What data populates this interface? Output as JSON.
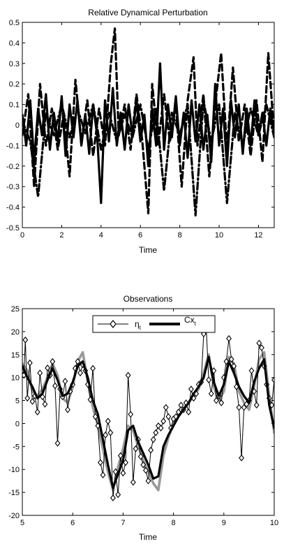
{
  "chart_data": [
    {
      "type": "line",
      "title": "Relative Dynamical Perturbation",
      "xlabel": "Time",
      "ylabel": "",
      "xlim": [
        0,
        12.8
      ],
      "ylim": [
        -0.5,
        0.5
      ],
      "xticks": [
        0,
        2,
        4,
        6,
        8,
        10,
        12
      ],
      "yticks": [
        -0.5,
        -0.4,
        -0.3,
        -0.2,
        -0.1,
        0,
        0.1,
        0.2,
        0.3,
        0.4,
        0.5
      ],
      "xtick_labels": [
        "0",
        "2",
        "4",
        "6",
        "8",
        "10",
        "12"
      ],
      "ytick_labels": [
        "-0.5",
        "-0.4",
        "-0.3",
        "-0.2",
        "-0.1",
        "0",
        "0.1",
        "0.2",
        "0.3",
        "0.4",
        "0.5"
      ],
      "grid": false,
      "series": [
        {
          "style": "solid-thick",
          "color": "#000000",
          "x": [
            0,
            0.2,
            0.4,
            0.6,
            0.8,
            1.0,
            1.2,
            1.4,
            1.6,
            1.8,
            2.0,
            2.2,
            2.4,
            2.6,
            2.8,
            3.0,
            3.2,
            3.4,
            3.6,
            3.8,
            4.0,
            4.2,
            4.4,
            4.6,
            4.8,
            5.0,
            5.2,
            5.4,
            5.6,
            5.8,
            6.0,
            6.2,
            6.4,
            6.6,
            6.8,
            7.0,
            7.2,
            7.4,
            7.6,
            7.8,
            8.0,
            8.2,
            8.4,
            8.6,
            8.8,
            9.0,
            9.2,
            9.4,
            9.6,
            9.8,
            10.0,
            10.2,
            10.4,
            10.6,
            10.8,
            11.0,
            11.2,
            11.4,
            11.6,
            11.8,
            12.0,
            12.2,
            12.4,
            12.6,
            12.8
          ],
          "y": [
            0.05,
            -0.1,
            0.12,
            -0.18,
            0.08,
            -0.05,
            0.15,
            -0.12,
            0.06,
            -0.08,
            0.14,
            -0.15,
            0.1,
            -0.06,
            0.12,
            -0.1,
            0.05,
            -0.14,
            0.1,
            -0.05,
            -0.38,
            0.12,
            -0.08,
            0.18,
            -0.1,
            0.06,
            -0.12,
            0.1,
            -0.05,
            0.12,
            -0.08,
            0.05,
            -0.2,
            0.08,
            -0.1,
            0.3,
            -0.12,
            0.1,
            -0.06,
            0.14,
            -0.1,
            0.06,
            -0.16,
            0.12,
            -0.08,
            0.1,
            -0.12,
            0.05,
            -0.18,
            0.2,
            -0.1,
            0.08,
            -0.2,
            0.12,
            -0.06,
            0.1,
            -0.14,
            0.08,
            -0.1,
            0.12,
            -0.05,
            0.06,
            -0.1,
            0.08,
            -0.04
          ]
        },
        {
          "style": "dashed-thick",
          "color": "#000000",
          "x": [
            0,
            0.3,
            0.6,
            0.9,
            1.2,
            1.5,
            1.8,
            2.1,
            2.4,
            2.7,
            3.0,
            3.3,
            3.6,
            3.9,
            4.2,
            4.5,
            4.7,
            4.9,
            5.2,
            5.5,
            5.8,
            6.1,
            6.4,
            6.6,
            6.9,
            7.2,
            7.5,
            7.8,
            8.1,
            8.4,
            8.7,
            8.9,
            9.2,
            9.5,
            9.8,
            10.1,
            10.4,
            10.7,
            11.0,
            11.3,
            11.6,
            11.9,
            12.2,
            12.5,
            12.8
          ],
          "y": [
            -0.05,
            0.15,
            -0.3,
            0.2,
            -0.1,
            0.08,
            -0.12,
            0.05,
            -0.25,
            0.22,
            -0.08,
            0.12,
            -0.15,
            0.08,
            -0.1,
            0.3,
            0.47,
            -0.05,
            0.1,
            -0.12,
            0.15,
            -0.08,
            -0.43,
            0.2,
            -0.1,
            0.15,
            -0.08,
            0.1,
            -0.3,
            0.12,
            0.33,
            -0.1,
            0.15,
            -0.25,
            0.1,
            0.35,
            -0.12,
            0.28,
            -0.08,
            0.1,
            -0.15,
            0.12,
            -0.18,
            0.35,
            -0.05
          ]
        },
        {
          "style": "dashdot-thick",
          "color": "#000000",
          "x": [
            0,
            0.4,
            0.8,
            1.2,
            1.6,
            2.0,
            2.4,
            2.8,
            3.2,
            3.6,
            4.0,
            4.4,
            4.8,
            5.2,
            5.6,
            6.0,
            6.4,
            6.8,
            7.2,
            7.6,
            8.0,
            8.4,
            8.8,
            9.2,
            9.6,
            10.0,
            10.4,
            10.8,
            11.2,
            11.6,
            12.0,
            12.4,
            12.8
          ],
          "y": [
            0.02,
            -0.08,
            -0.35,
            0.06,
            -0.05,
            0.1,
            -0.06,
            0.08,
            -0.04,
            0.1,
            -0.12,
            0.06,
            -0.08,
            0.05,
            -0.06,
            0.1,
            -0.12,
            0.08,
            -0.32,
            0.06,
            -0.05,
            0.1,
            -0.44,
            0.12,
            -0.08,
            0.1,
            -0.38,
            0.06,
            -0.1,
            0.08,
            -0.05,
            0.1,
            -0.06
          ]
        }
      ]
    },
    {
      "type": "line",
      "title": "Observations",
      "xlabel": "Time",
      "ylabel": "",
      "xlim": [
        5,
        10
      ],
      "ylim": [
        -20,
        25
      ],
      "xticks": [
        5,
        6,
        7,
        8,
        9,
        10
      ],
      "yticks": [
        -20,
        -15,
        -10,
        -5,
        0,
        5,
        10,
        15,
        20,
        25
      ],
      "xtick_labels": [
        "5",
        "6",
        "7",
        "8",
        "9",
        "10"
      ],
      "ytick_labels": [
        "-20",
        "-15",
        "-10",
        "-5",
        "0",
        "5",
        "10",
        "15",
        "20",
        "25"
      ],
      "grid": false,
      "legend": {
        "position": "top-center",
        "entries": [
          "η_t",
          "Cx_t"
        ]
      },
      "legend_labels": {
        "eta_main": "η",
        "eta_sub": "t",
        "cx_main": "Cx",
        "cx_sub": "t"
      },
      "series": [
        {
          "name": "eta_t",
          "style": "thin-diamond",
          "color": "#000000",
          "x": [
            5.0,
            5.03,
            5.06,
            5.1,
            5.15,
            5.2,
            5.25,
            5.3,
            5.35,
            5.4,
            5.45,
            5.5,
            5.55,
            5.6,
            5.65,
            5.7,
            5.75,
            5.8,
            5.85,
            5.9,
            5.95,
            6.0,
            6.05,
            6.1,
            6.15,
            6.2,
            6.25,
            6.3,
            6.35,
            6.4,
            6.45,
            6.5,
            6.55,
            6.6,
            6.65,
            6.7,
            6.75,
            6.8,
            6.85,
            6.9,
            6.95,
            7.0,
            7.05,
            7.1,
            7.15,
            7.2,
            7.25,
            7.3,
            7.35,
            7.4,
            7.45,
            7.5,
            7.55,
            7.6,
            7.65,
            7.7,
            7.75,
            7.8,
            7.85,
            7.9,
            7.95,
            8.0,
            8.05,
            8.1,
            8.15,
            8.2,
            8.25,
            8.3,
            8.35,
            8.4,
            8.45,
            8.5,
            8.55,
            8.6,
            8.65,
            8.7,
            8.75,
            8.8,
            8.85,
            8.9,
            8.95,
            9.0,
            9.05,
            9.1,
            9.15,
            9.2,
            9.25,
            9.3,
            9.35,
            9.4,
            9.45,
            9.5,
            9.55,
            9.6,
            9.65,
            9.7,
            9.75,
            9.8,
            9.85,
            9.9,
            9.95,
            10.0
          ],
          "y": [
            11.5,
            10.5,
            18.2,
            5.5,
            13.2,
            4.8,
            6.0,
            2.5,
            11.0,
            5.8,
            4.2,
            12.1,
            10.5,
            13.5,
            8.2,
            -4.3,
            7.5,
            5.8,
            9.2,
            3.0,
            7.0,
            8.5,
            12.0,
            13.5,
            11.0,
            12.8,
            11.5,
            8.5,
            5.2,
            12.0,
            1.5,
            -0.5,
            -8.5,
            -11.2,
            -2.5,
            0.5,
            -2.0,
            -16.2,
            -10.5,
            -15.5,
            -7.0,
            -10.8,
            -8.5,
            10.5,
            2.0,
            -12.8,
            -5.5,
            -3.5,
            -7.2,
            -9.0,
            -10.2,
            -12.5,
            -5.8,
            -3.5,
            -2.0,
            -0.5,
            -1.0,
            0.5,
            3.5,
            1.5,
            -1.0,
            1.0,
            1.5,
            2.5,
            4.0,
            3.0,
            4.5,
            2.5,
            7.5,
            5.5,
            6.5,
            8.5,
            9.0,
            19.5,
            21.0,
            9.5,
            6.5,
            11.5,
            5.0,
            6.0,
            4.5,
            10.0,
            13.5,
            18.5,
            14.0,
            12.5,
            8.0,
            3.5,
            -7.5,
            3.5,
            4.2,
            5.0,
            11.5,
            7.0,
            4.0,
            17.5,
            16.5,
            12.5,
            8.5,
            5.5,
            4.0,
            9.5
          ]
        },
        {
          "name": "Cx_t",
          "style": "thick",
          "color": "#000000",
          "x": [
            5.0,
            5.1,
            5.2,
            5.3,
            5.4,
            5.5,
            5.6,
            5.7,
            5.8,
            5.9,
            6.0,
            6.1,
            6.2,
            6.3,
            6.4,
            6.5,
            6.6,
            6.7,
            6.8,
            6.9,
            7.0,
            7.1,
            7.2,
            7.3,
            7.4,
            7.5,
            7.6,
            7.7,
            7.8,
            7.9,
            8.0,
            8.1,
            8.2,
            8.3,
            8.4,
            8.5,
            8.6,
            8.7,
            8.8,
            8.9,
            9.0,
            9.1,
            9.2,
            9.3,
            9.4,
            9.5,
            9.6,
            9.7,
            9.8,
            9.9,
            10.0
          ],
          "y": [
            12.5,
            10.0,
            8.0,
            5.5,
            6.5,
            9.5,
            12.0,
            9.5,
            6.0,
            6.5,
            9.0,
            12.5,
            13.5,
            10.0,
            5.0,
            2.0,
            -3.5,
            -9.0,
            -14.0,
            -11.0,
            -8.0,
            -1.5,
            -0.5,
            -4.0,
            -6.5,
            -9.0,
            -12.0,
            -11.5,
            -5.0,
            -2.5,
            -0.5,
            1.5,
            3.0,
            4.5,
            6.5,
            8.0,
            10.0,
            14.5,
            9.0,
            6.0,
            8.5,
            13.5,
            11.0,
            8.0,
            6.0,
            4.5,
            9.0,
            12.0,
            14.0,
            4.0,
            -1.0
          ]
        },
        {
          "name": "gray",
          "style": "thick-gray",
          "color": "#999999",
          "x": [
            5.0,
            5.1,
            5.2,
            5.3,
            5.4,
            5.5,
            5.6,
            5.7,
            5.8,
            5.9,
            6.0,
            6.1,
            6.2,
            6.3,
            6.4,
            6.5,
            6.6,
            6.7,
            6.8,
            6.9,
            7.0,
            7.1,
            7.2,
            7.3,
            7.4,
            7.5,
            7.6,
            7.7,
            7.8,
            7.9,
            8.0,
            8.1,
            8.2,
            8.3,
            8.4,
            8.5,
            8.6,
            8.7,
            8.8,
            8.9,
            9.0,
            9.1,
            9.2,
            9.3,
            9.4,
            9.5,
            9.6,
            9.7,
            9.8,
            9.9,
            10.0
          ],
          "y": [
            13.0,
            11.5,
            7.0,
            6.0,
            7.5,
            10.0,
            13.0,
            10.5,
            5.5,
            4.5,
            8.0,
            13.5,
            15.5,
            9.0,
            3.5,
            -0.5,
            -5.5,
            -10.5,
            -14.5,
            -9.5,
            -5.5,
            -0.5,
            -1.5,
            -5.0,
            -8.0,
            -10.5,
            -13.0,
            -14.5,
            -7.0,
            -3.0,
            0.0,
            2.0,
            3.0,
            4.5,
            6.0,
            7.5,
            11.0,
            15.0,
            8.0,
            5.0,
            7.0,
            14.5,
            13.0,
            7.0,
            4.5,
            3.0,
            8.0,
            14.0,
            15.5,
            6.0,
            -2.0
          ]
        }
      ]
    }
  ]
}
